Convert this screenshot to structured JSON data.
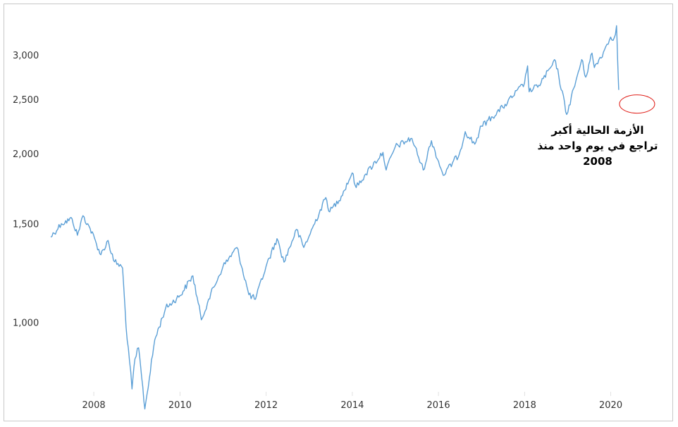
{
  "chart_data": {
    "type": "line",
    "title": "",
    "xlabel": "",
    "ylabel": "",
    "y_scale": "log",
    "ylim": [
      760,
      3450
    ],
    "xlim": [
      "2007-01-01",
      "2020-06-01"
    ],
    "grid": false,
    "y_ticks": [
      {
        "value": 1000,
        "label": "1,000"
      },
      {
        "value": 1500,
        "label": "1,500"
      },
      {
        "value": 2000,
        "label": "2,000"
      },
      {
        "value": 2500,
        "label": "2,500"
      },
      {
        "value": 3000,
        "label": "3,000"
      }
    ],
    "x_ticks": [
      {
        "value": "2008-01-01",
        "label": "2008"
      },
      {
        "value": "2010-01-01",
        "label": "2010"
      },
      {
        "value": "2012-01-01",
        "label": "2012"
      },
      {
        "value": "2014-01-01",
        "label": "2014"
      },
      {
        "value": "2016-01-01",
        "label": "2016"
      },
      {
        "value": "2018-01-01",
        "label": "2018"
      },
      {
        "value": "2020-01-01",
        "label": "2020"
      }
    ],
    "series": [
      {
        "color": "#5b9fd6",
        "x": [
          "2007-01-01",
          "2007-04-01",
          "2007-07-01",
          "2007-08-15",
          "2007-10-01",
          "2007-12-01",
          "2008-03-01",
          "2008-05-01",
          "2008-06-15",
          "2008-09-01",
          "2008-10-01",
          "2008-10-20",
          "2008-11-20",
          "2008-12-15",
          "2009-01-15",
          "2009-03-09",
          "2009-06-01",
          "2009-09-01",
          "2009-12-31",
          "2010-04-20",
          "2010-07-01",
          "2010-09-01",
          "2010-12-31",
          "2011-04-29",
          "2011-08-08",
          "2011-10-03",
          "2011-12-31",
          "2012-04-02",
          "2012-06-01",
          "2012-09-14",
          "2012-11-15",
          "2012-12-31",
          "2013-05-21",
          "2013-06-24",
          "2013-09-30",
          "2013-12-31",
          "2014-02-03",
          "2014-04-15",
          "2014-09-18",
          "2014-10-15",
          "2014-12-31",
          "2015-05-21",
          "2015-08-25",
          "2015-11-03",
          "2016-02-11",
          "2016-06-27",
          "2016-08-15",
          "2016-11-04",
          "2016-12-31",
          "2017-06-30",
          "2017-12-31",
          "2018-01-26",
          "2018-02-08",
          "2018-05-01",
          "2018-09-20",
          "2018-12-24",
          "2019-04-30",
          "2019-06-03",
          "2019-07-26",
          "2019-08-15",
          "2019-10-31",
          "2019-12-31",
          "2020-01-31",
          "2020-02-19",
          "2020-02-28",
          "2020-03-09"
        ],
        "y": [
          1420,
          1500,
          1530,
          1430,
          1550,
          1470,
          1320,
          1400,
          1290,
          1250,
          980,
          900,
          760,
          860,
          900,
          700,
          930,
          1060,
          1115,
          1210,
          1010,
          1100,
          1257,
          1360,
          1120,
          1099,
          1257,
          1410,
          1280,
          1465,
          1360,
          1426,
          1670,
          1575,
          1680,
          1848,
          1740,
          1830,
          2011,
          1870,
          2058,
          2130,
          1870,
          2110,
          1830,
          2000,
          2190,
          2080,
          2240,
          2420,
          2673,
          2870,
          2580,
          2650,
          2930,
          2350,
          2945,
          2740,
          3025,
          2850,
          3037,
          3230,
          3225,
          3386,
          2954,
          2600
        ]
      }
    ],
    "annotations": [
      {
        "lines": [
          "الأزمة الحالية أكبر",
          "تراجع في يوم واحد منذ",
          "2008"
        ]
      }
    ],
    "highlight_point": {
      "x": "2020-03-09",
      "y": 2600,
      "color": "#e0201a"
    }
  }
}
